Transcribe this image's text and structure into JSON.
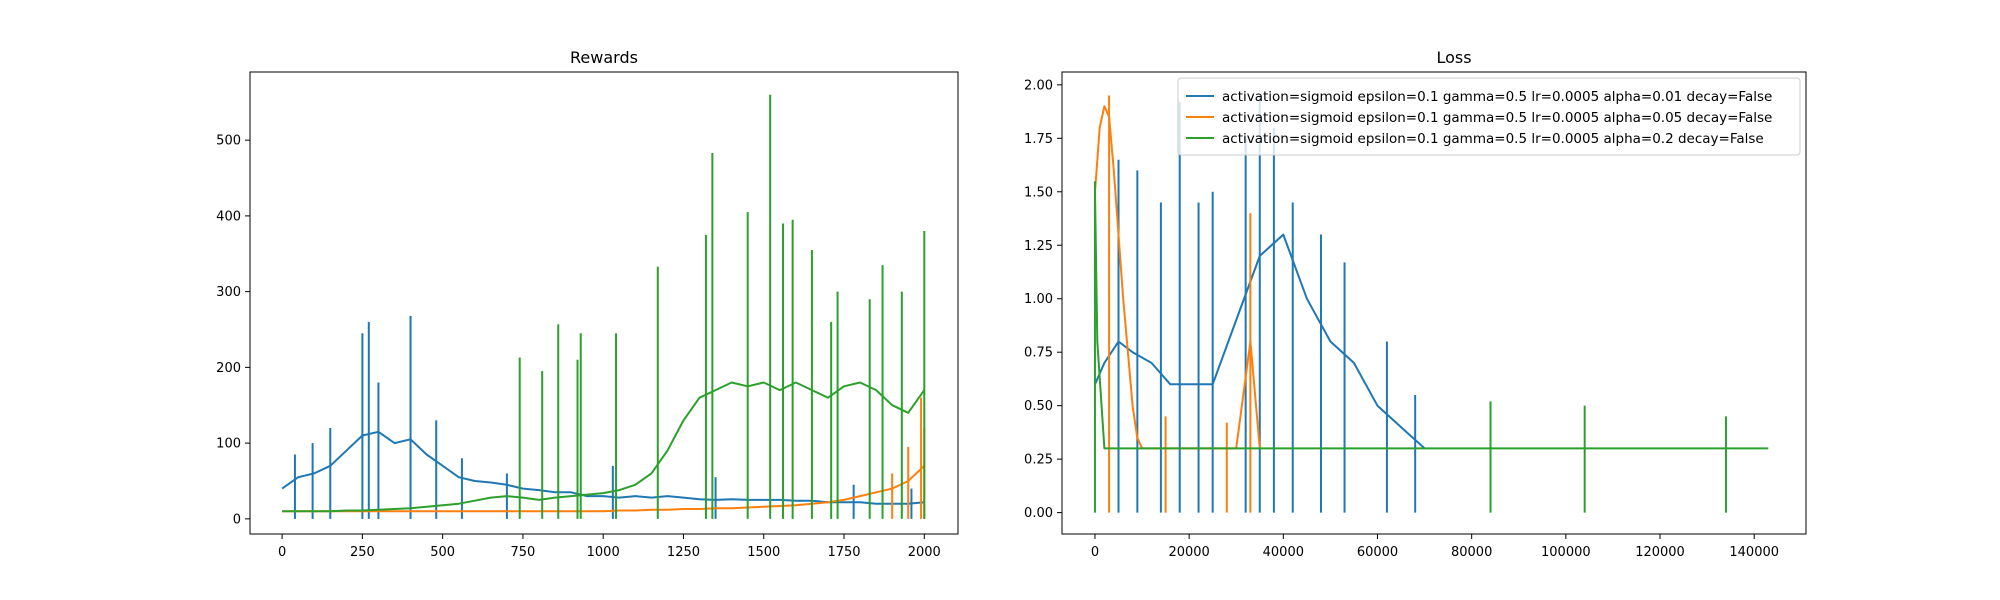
{
  "colors": {
    "series0": "#1f77b4",
    "series1": "#ff7f0e",
    "series2": "#2ca02c"
  },
  "chart_data": [
    {
      "type": "line",
      "title": "Rewards",
      "xlabel": "",
      "ylabel": "",
      "xlim": [
        -100,
        2105
      ],
      "ylim": [
        -20,
        590
      ],
      "xticks": [
        0,
        250,
        500,
        750,
        1000,
        1250,
        1500,
        1750,
        2000
      ],
      "xtick_labels": [
        "0",
        "250",
        "500",
        "750",
        "1000",
        "1250",
        "1500",
        "1750",
        "2000"
      ],
      "yticks": [
        0,
        100,
        200,
        300,
        400,
        500
      ],
      "ytick_labels": [
        "0",
        "100",
        "200",
        "300",
        "400",
        "500"
      ],
      "grid": false,
      "legend": "none",
      "series": [
        {
          "color": "#1f77b4",
          "x": [
            0,
            50,
            100,
            150,
            200,
            250,
            300,
            350,
            400,
            450,
            500,
            550,
            600,
            650,
            700,
            750,
            800,
            850,
            900,
            950,
            1000,
            1050,
            1100,
            1150,
            1200,
            1250,
            1300,
            1350,
            1400,
            1450,
            1500,
            1550,
            1600,
            1650,
            1700,
            1750,
            1800,
            1850,
            1900,
            1950,
            2000
          ],
          "y": [
            40,
            55,
            60,
            70,
            90,
            110,
            115,
            100,
            105,
            85,
            70,
            55,
            50,
            48,
            45,
            40,
            38,
            35,
            35,
            30,
            30,
            28,
            30,
            28,
            30,
            28,
            26,
            25,
            26,
            25,
            25,
            25,
            24,
            24,
            22,
            22,
            22,
            20,
            20,
            20,
            22
          ],
          "spikes": [
            [
              40,
              85
            ],
            [
              95,
              100
            ],
            [
              150,
              120
            ],
            [
              250,
              245
            ],
            [
              270,
              260
            ],
            [
              300,
              180
            ],
            [
              400,
              268
            ],
            [
              480,
              130
            ],
            [
              560,
              80
            ],
            [
              700,
              60
            ],
            [
              1030,
              70
            ],
            [
              1350,
              55
            ],
            [
              1780,
              45
            ],
            [
              1960,
              40
            ]
          ]
        },
        {
          "color": "#ff7f0e",
          "x": [
            0,
            50,
            100,
            150,
            200,
            250,
            300,
            350,
            400,
            450,
            500,
            550,
            600,
            650,
            700,
            750,
            800,
            850,
            900,
            950,
            1000,
            1050,
            1100,
            1150,
            1200,
            1250,
            1300,
            1350,
            1400,
            1450,
            1500,
            1550,
            1600,
            1650,
            1700,
            1750,
            1800,
            1850,
            1900,
            1950,
            2000
          ],
          "y": [
            10,
            10,
            10,
            10,
            10,
            10,
            10,
            10,
            10,
            10,
            10,
            10,
            10,
            10,
            10,
            10,
            10,
            10,
            10,
            10,
            10,
            11,
            11,
            12,
            12,
            13,
            13,
            14,
            14,
            15,
            16,
            17,
            18,
            20,
            22,
            25,
            30,
            35,
            40,
            50,
            70
          ],
          "spikes": [
            [
              1990,
              160
            ],
            [
              2000,
              120
            ],
            [
              1950,
              95
            ],
            [
              1900,
              60
            ]
          ]
        },
        {
          "color": "#2ca02c",
          "x": [
            0,
            50,
            100,
            150,
            200,
            250,
            300,
            350,
            400,
            450,
            500,
            550,
            600,
            650,
            700,
            750,
            800,
            850,
            900,
            950,
            1000,
            1050,
            1100,
            1150,
            1200,
            1250,
            1300,
            1350,
            1400,
            1450,
            1500,
            1550,
            1600,
            1650,
            1700,
            1750,
            1800,
            1850,
            1900,
            1950,
            2000
          ],
          "y": [
            10,
            10,
            10,
            10,
            11,
            11,
            12,
            13,
            14,
            16,
            18,
            20,
            24,
            28,
            30,
            28,
            25,
            28,
            30,
            32,
            34,
            38,
            45,
            60,
            90,
            130,
            160,
            170,
            180,
            175,
            180,
            170,
            180,
            170,
            160,
            175,
            180,
            170,
            150,
            140,
            170
          ],
          "spikes": [
            [
              740,
              213
            ],
            [
              810,
              195
            ],
            [
              860,
              257
            ],
            [
              920,
              210
            ],
            [
              930,
              245
            ],
            [
              1040,
              245
            ],
            [
              1170,
              333
            ],
            [
              1320,
              375
            ],
            [
              1340,
              483
            ],
            [
              1450,
              405
            ],
            [
              1520,
              560
            ],
            [
              1560,
              390
            ],
            [
              1590,
              395
            ],
            [
              1650,
              355
            ],
            [
              1710,
              260
            ],
            [
              1730,
              300
            ],
            [
              1830,
              290
            ],
            [
              1870,
              335
            ],
            [
              1930,
              300
            ],
            [
              2000,
              380
            ]
          ]
        }
      ]
    },
    {
      "type": "line",
      "title": "Loss",
      "xlabel": "",
      "ylabel": "",
      "xlim": [
        -7000,
        151000
      ],
      "ylim": [
        -0.1,
        2.06
      ],
      "xticks": [
        0,
        20000,
        40000,
        60000,
        80000,
        100000,
        120000,
        140000
      ],
      "xtick_labels": [
        "0",
        "20000",
        "40000",
        "60000",
        "80000",
        "100000",
        "120000",
        "140000"
      ],
      "yticks": [
        0,
        0.25,
        0.5,
        0.75,
        1.0,
        1.25,
        1.5,
        1.75,
        2.0
      ],
      "ytick_labels": [
        "0.00",
        "0.25",
        "0.50",
        "0.75",
        "1.00",
        "1.25",
        "1.50",
        "1.75",
        "2.00"
      ],
      "grid": false,
      "legend": "top-right",
      "series": [
        {
          "name": "activation=sigmoid epsilon=0.1 gamma=0.5 lr=0.0005 alpha=0.01 decay=False",
          "color": "#1f77b4",
          "x": [
            0,
            2000,
            5000,
            8000,
            12000,
            16000,
            20000,
            25000,
            30000,
            35000,
            40000,
            45000,
            50000,
            55000,
            60000,
            65000,
            70000
          ],
          "y": [
            0.6,
            0.7,
            0.8,
            0.75,
            0.7,
            0.6,
            0.6,
            0.6,
            0.9,
            1.2,
            1.3,
            1.0,
            0.8,
            0.7,
            0.5,
            0.4,
            0.3
          ],
          "spikes": [
            [
              5000,
              1.65
            ],
            [
              9000,
              1.6
            ],
            [
              14000,
              1.45
            ],
            [
              18000,
              1.92
            ],
            [
              22000,
              1.45
            ],
            [
              25000,
              1.5
            ],
            [
              32000,
              1.75
            ],
            [
              35000,
              1.95
            ],
            [
              38000,
              1.8
            ],
            [
              42000,
              1.45
            ],
            [
              48000,
              1.3
            ],
            [
              53000,
              1.17
            ],
            [
              62000,
              0.8
            ],
            [
              68000,
              0.55
            ]
          ]
        },
        {
          "name": "activation=sigmoid epsilon=0.1 gamma=0.5 lr=0.0005 alpha=0.05 decay=False",
          "color": "#ff7f0e",
          "x": [
            0,
            1000,
            2000,
            3000,
            4000,
            5000,
            6000,
            7000,
            8000,
            9000,
            10000,
            12000,
            15000,
            20000,
            25000,
            30000,
            33000,
            35000
          ],
          "y": [
            1.5,
            1.8,
            1.9,
            1.85,
            1.6,
            1.3,
            1.0,
            0.75,
            0.5,
            0.35,
            0.3,
            0.3,
            0.3,
            0.3,
            0.3,
            0.3,
            0.8,
            0.3
          ],
          "spikes": [
            [
              3000,
              1.95
            ],
            [
              33000,
              1.4
            ],
            [
              15000,
              0.45
            ],
            [
              28000,
              0.42
            ]
          ]
        },
        {
          "name": "activation=sigmoid epsilon=0.1 gamma=0.5 lr=0.0005 alpha=0.2 decay=False",
          "color": "#2ca02c",
          "x": [
            0,
            500,
            2000,
            5000,
            10000,
            20000,
            30000,
            40000,
            50000,
            60000,
            70000,
            80000,
            90000,
            100000,
            110000,
            120000,
            130000,
            140000,
            143000
          ],
          "y": [
            1.5,
            0.8,
            0.3,
            0.3,
            0.3,
            0.3,
            0.3,
            0.3,
            0.3,
            0.3,
            0.3,
            0.3,
            0.3,
            0.3,
            0.3,
            0.3,
            0.3,
            0.3,
            0.3
          ],
          "spikes": [
            [
              0,
              1.55
            ],
            [
              84000,
              0.52
            ],
            [
              104000,
              0.5
            ],
            [
              134000,
              0.45
            ]
          ]
        }
      ]
    }
  ]
}
